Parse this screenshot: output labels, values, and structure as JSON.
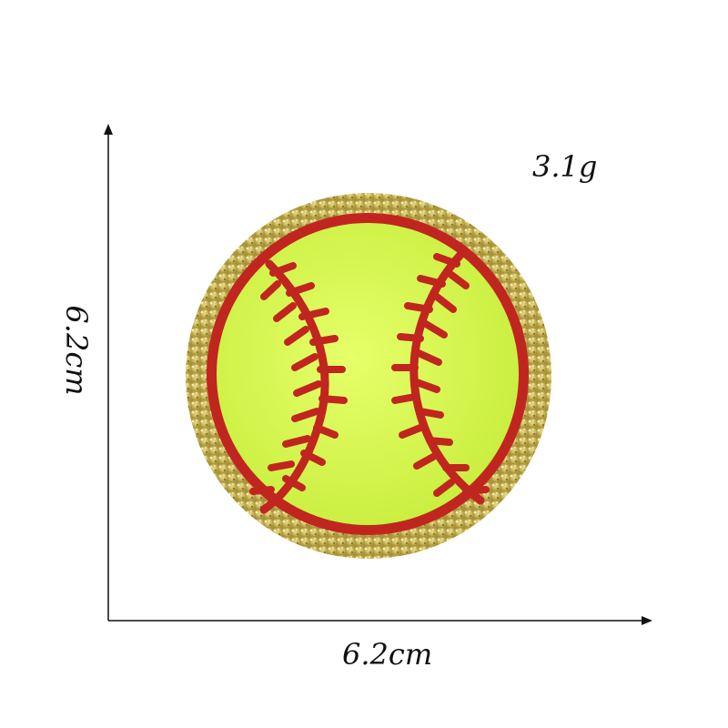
{
  "labels": {
    "weight": "3.1g",
    "height": "6.2cm",
    "width": "6.2cm"
  },
  "patch": {
    "subject": "softball-chenille-patch",
    "colors": {
      "border_glitter": "#c9b85a",
      "ball_felt": "#d9f55a",
      "stitching": "#c0261f",
      "axis": "#111111"
    }
  }
}
